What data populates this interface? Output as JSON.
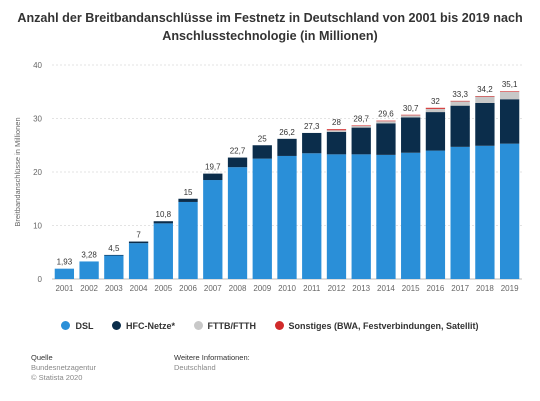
{
  "chart_data": {
    "type": "bar",
    "stacked": true,
    "title": "Anzahl der Breitbandanschlüsse im Festnetz in Deutschland von 2001 bis 2019 nach Anschlusstechnologie (in Millionen)",
    "ylabel": "Breitbandanschlüsse in Millionen",
    "ylim": [
      0,
      40
    ],
    "yticks": [
      "0",
      "10",
      "20",
      "30",
      "40"
    ],
    "grid": true,
    "legend_position": "bottom",
    "categories": [
      "2001",
      "2002",
      "2003",
      "2004",
      "2005",
      "2006",
      "2007",
      "2008",
      "2009",
      "2010",
      "2011",
      "2012",
      "2013",
      "2014",
      "2015",
      "2016",
      "2017",
      "2018",
      "2019"
    ],
    "totals": [
      "1,93",
      "3,28",
      "4,5",
      "7",
      "10,8",
      "15",
      "19,7",
      "22,7",
      "25",
      "26,2",
      "27,3",
      "28",
      "28,7",
      "29,6",
      "30,7",
      "32",
      "33,3",
      "34,2",
      "35,1"
    ],
    "series": [
      {
        "name": "DSL",
        "color": "#2a8fd8",
        "values": [
          1.93,
          3.28,
          4.4,
          6.7,
          10.4,
          14.4,
          18.5,
          20.9,
          22.5,
          23.0,
          23.5,
          23.3,
          23.3,
          23.2,
          23.6,
          24.0,
          24.7,
          24.9,
          25.3
        ]
      },
      {
        "name": "HFC-Netze*",
        "color": "#0b2d4b",
        "values": [
          0,
          0,
          0.1,
          0.3,
          0.4,
          0.6,
          1.2,
          1.8,
          2.5,
          3.2,
          3.8,
          4.2,
          5.0,
          5.9,
          6.6,
          7.2,
          7.7,
          8.0,
          8.3
        ]
      },
      {
        "name": "FTTB/FTTH",
        "color": "#c8c8c8",
        "values": [
          0,
          0,
          0,
          0,
          0,
          0,
          0,
          0,
          0,
          0,
          0,
          0.3,
          0.3,
          0.4,
          0.4,
          0.6,
          0.8,
          1.2,
          1.4
        ]
      },
      {
        "name": "Sonstiges (BWA, Festverbindungen, Satellit)",
        "color": "#d12b2b",
        "values": [
          0,
          0,
          0,
          0,
          0,
          0,
          0,
          0,
          0,
          0,
          0,
          0.2,
          0.1,
          0.1,
          0.1,
          0.2,
          0.1,
          0.1,
          0.1
        ]
      }
    ]
  },
  "footer": {
    "source_heading": "Quelle",
    "source_line1": "Bundesnetzagentur",
    "source_line2": "© Statista 2020",
    "info_heading": "Weitere Informationen:",
    "info_line1": "Deutschland"
  }
}
